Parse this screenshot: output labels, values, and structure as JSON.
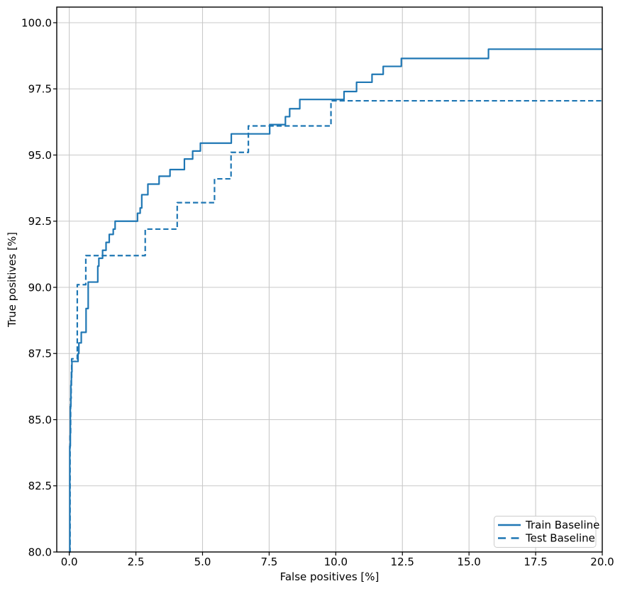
{
  "chart_data": {
    "type": "line",
    "variant": "step-post",
    "title": "",
    "xlabel": "False positives [%]",
    "ylabel": "True positives [%]",
    "xlim": [
      -0.47,
      20
    ],
    "ylim": [
      80,
      100.59
    ],
    "xtick_labels": [
      "0.0",
      "2.5",
      "5.0",
      "7.5",
      "10.0",
      "12.5",
      "15.0",
      "17.5",
      "20.0"
    ],
    "ytick_labels": [
      "80.0",
      "82.5",
      "85.0",
      "87.5",
      "90.0",
      "92.5",
      "95.0",
      "97.5",
      "100.0"
    ],
    "grid": true,
    "legend": {
      "position": "lower right"
    },
    "colors": {
      "line": "#1f77b4",
      "grid": "#c9c9c9",
      "spine": "#000000",
      "text": "#000000",
      "legend_border": "#cccccc",
      "legend_fill": "#ffffff"
    },
    "series": [
      {
        "name": "Train Baseline",
        "style": "solid",
        "points": [
          [
            0.0,
            80.0
          ],
          [
            0.02,
            84.0
          ],
          [
            0.04,
            85.5
          ],
          [
            0.06,
            86.3
          ],
          [
            0.08,
            86.8
          ],
          [
            0.1,
            87.2
          ],
          [
            0.33,
            87.5
          ],
          [
            0.36,
            87.9
          ],
          [
            0.45,
            88.3
          ],
          [
            0.63,
            89.2
          ],
          [
            0.71,
            90.2
          ],
          [
            1.07,
            90.8
          ],
          [
            1.11,
            91.1
          ],
          [
            1.25,
            91.4
          ],
          [
            1.38,
            91.7
          ],
          [
            1.5,
            92.0
          ],
          [
            1.65,
            92.2
          ],
          [
            1.72,
            92.5
          ],
          [
            2.56,
            92.8
          ],
          [
            2.66,
            93.0
          ],
          [
            2.72,
            93.5
          ],
          [
            2.95,
            93.9
          ],
          [
            3.37,
            94.2
          ],
          [
            3.78,
            94.45
          ],
          [
            4.32,
            94.85
          ],
          [
            4.63,
            95.15
          ],
          [
            4.92,
            95.45
          ],
          [
            6.08,
            95.8
          ],
          [
            7.52,
            96.15
          ],
          [
            8.11,
            96.45
          ],
          [
            8.27,
            96.75
          ],
          [
            8.65,
            97.1
          ],
          [
            10.31,
            97.4
          ],
          [
            10.78,
            97.75
          ],
          [
            11.36,
            98.05
          ],
          [
            11.78,
            98.35
          ],
          [
            12.46,
            98.65
          ],
          [
            15.73,
            99.0
          ],
          [
            20.0,
            99.0
          ]
        ]
      },
      {
        "name": "Test Baseline",
        "style": "dashed",
        "points": [
          [
            0.0,
            80.0
          ],
          [
            0.03,
            84.5
          ],
          [
            0.05,
            85.8
          ],
          [
            0.07,
            86.5
          ],
          [
            0.09,
            87.3
          ],
          [
            0.3,
            90.1
          ],
          [
            0.62,
            91.2
          ],
          [
            2.85,
            92.2
          ],
          [
            4.05,
            93.2
          ],
          [
            5.45,
            94.1
          ],
          [
            6.07,
            95.1
          ],
          [
            6.72,
            96.1
          ],
          [
            9.82,
            97.05
          ],
          [
            20.0,
            97.05
          ]
        ]
      }
    ]
  }
}
